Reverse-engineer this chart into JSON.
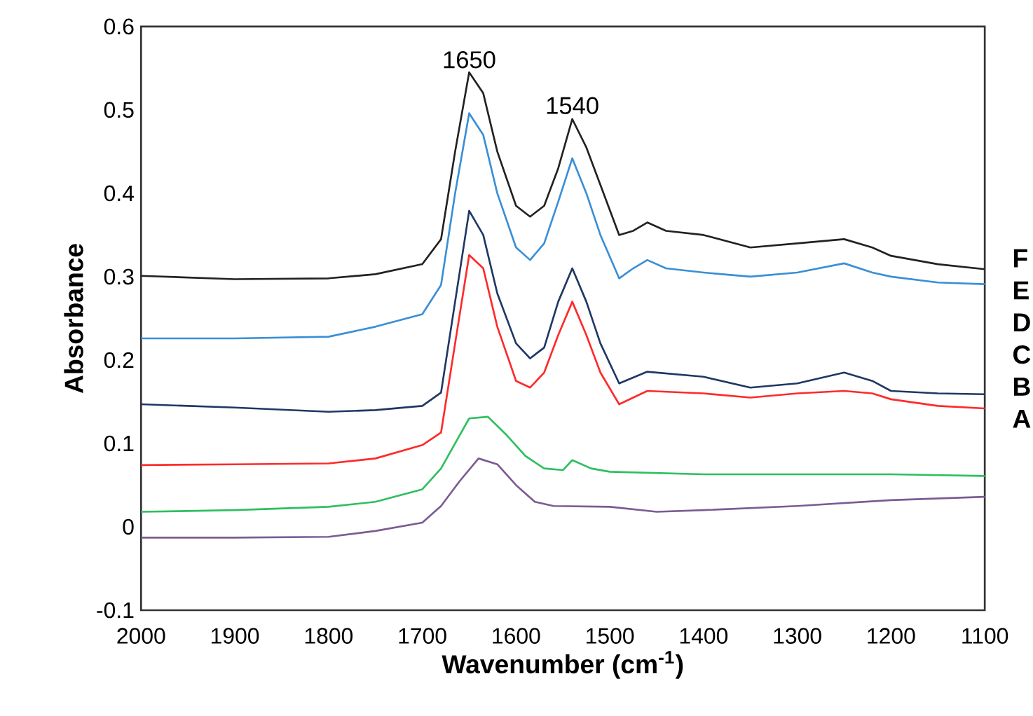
{
  "chart_data": {
    "type": "line",
    "xlabel": "Wavenumber (cm$^{-1}$)",
    "ylabel": "Absorbance",
    "xlim": [
      2000,
      1100
    ],
    "xticks": [
      2000,
      1900,
      1800,
      1700,
      1600,
      1500,
      1400,
      1300,
      1200,
      1100
    ],
    "ylim": [
      -0.1,
      0.6
    ],
    "yticks": [
      -0.1,
      0,
      0.1,
      0.2,
      0.3,
      0.4,
      0.5,
      0.6
    ],
    "annotations": [
      {
        "text": "1650",
        "x": 1650,
        "y": 0.545
      },
      {
        "text": "1540",
        "x": 1540,
        "y": 0.49
      }
    ],
    "series": [
      {
        "name": "F",
        "color": "#222222",
        "x": [
          2000,
          1900,
          1800,
          1750,
          1700,
          1680,
          1665,
          1650,
          1635,
          1620,
          1600,
          1585,
          1570,
          1555,
          1540,
          1525,
          1510,
          1490,
          1475,
          1460,
          1440,
          1400,
          1350,
          1300,
          1250,
          1220,
          1200,
          1150,
          1100
        ],
        "values": [
          0.301,
          0.297,
          0.298,
          0.303,
          0.315,
          0.345,
          0.45,
          0.545,
          0.52,
          0.45,
          0.385,
          0.372,
          0.385,
          0.43,
          0.489,
          0.455,
          0.41,
          0.35,
          0.355,
          0.365,
          0.355,
          0.35,
          0.335,
          0.34,
          0.345,
          0.335,
          0.325,
          0.315,
          0.309
        ]
      },
      {
        "name": "E",
        "color": "#3a8fd6",
        "x": [
          2000,
          1900,
          1800,
          1750,
          1700,
          1680,
          1665,
          1650,
          1635,
          1620,
          1600,
          1585,
          1570,
          1555,
          1540,
          1525,
          1510,
          1490,
          1475,
          1460,
          1440,
          1400,
          1350,
          1300,
          1250,
          1220,
          1200,
          1150,
          1100
        ],
        "values": [
          0.226,
          0.226,
          0.228,
          0.24,
          0.255,
          0.29,
          0.4,
          0.496,
          0.47,
          0.4,
          0.335,
          0.32,
          0.34,
          0.39,
          0.442,
          0.4,
          0.35,
          0.298,
          0.31,
          0.32,
          0.31,
          0.305,
          0.3,
          0.305,
          0.316,
          0.305,
          0.3,
          0.293,
          0.291
        ]
      },
      {
        "name": "D",
        "color": "#1f3864",
        "x": [
          2000,
          1900,
          1800,
          1750,
          1700,
          1680,
          1665,
          1650,
          1635,
          1620,
          1600,
          1585,
          1570,
          1555,
          1540,
          1525,
          1510,
          1490,
          1460,
          1400,
          1350,
          1300,
          1250,
          1220,
          1200,
          1150,
          1100
        ],
        "values": [
          0.147,
          0.143,
          0.138,
          0.14,
          0.145,
          0.161,
          0.27,
          0.379,
          0.35,
          0.28,
          0.22,
          0.202,
          0.215,
          0.27,
          0.31,
          0.27,
          0.22,
          0.172,
          0.186,
          0.18,
          0.167,
          0.172,
          0.185,
          0.175,
          0.163,
          0.16,
          0.159
        ]
      },
      {
        "name": "C",
        "color": "#ff2a2a",
        "x": [
          2000,
          1900,
          1800,
          1750,
          1700,
          1680,
          1665,
          1650,
          1635,
          1620,
          1600,
          1585,
          1570,
          1555,
          1540,
          1525,
          1510,
          1490,
          1475,
          1460,
          1400,
          1350,
          1300,
          1250,
          1220,
          1200,
          1150,
          1100
        ],
        "values": [
          0.074,
          0.075,
          0.076,
          0.082,
          0.098,
          0.113,
          0.22,
          0.326,
          0.31,
          0.24,
          0.175,
          0.167,
          0.185,
          0.23,
          0.27,
          0.23,
          0.185,
          0.147,
          0.155,
          0.163,
          0.16,
          0.155,
          0.16,
          0.163,
          0.16,
          0.153,
          0.145,
          0.142
        ]
      },
      {
        "name": "B",
        "color": "#2ebf5f",
        "x": [
          2000,
          1900,
          1800,
          1750,
          1700,
          1680,
          1665,
          1650,
          1630,
          1610,
          1590,
          1570,
          1550,
          1540,
          1520,
          1500,
          1400,
          1300,
          1200,
          1100
        ],
        "values": [
          0.018,
          0.02,
          0.024,
          0.03,
          0.045,
          0.07,
          0.1,
          0.13,
          0.132,
          0.11,
          0.085,
          0.07,
          0.068,
          0.08,
          0.07,
          0.066,
          0.063,
          0.063,
          0.063,
          0.061
        ]
      },
      {
        "name": "A",
        "color": "#7a5c93",
        "x": [
          2000,
          1900,
          1800,
          1750,
          1700,
          1680,
          1660,
          1640,
          1620,
          1600,
          1580,
          1560,
          1500,
          1450,
          1400,
          1300,
          1200,
          1100
        ],
        "values": [
          -0.013,
          -0.013,
          -0.012,
          -0.005,
          0.005,
          0.025,
          0.055,
          0.082,
          0.075,
          0.05,
          0.03,
          0.025,
          0.024,
          0.018,
          0.02,
          0.025,
          0.032,
          0.036
        ]
      }
    ]
  }
}
